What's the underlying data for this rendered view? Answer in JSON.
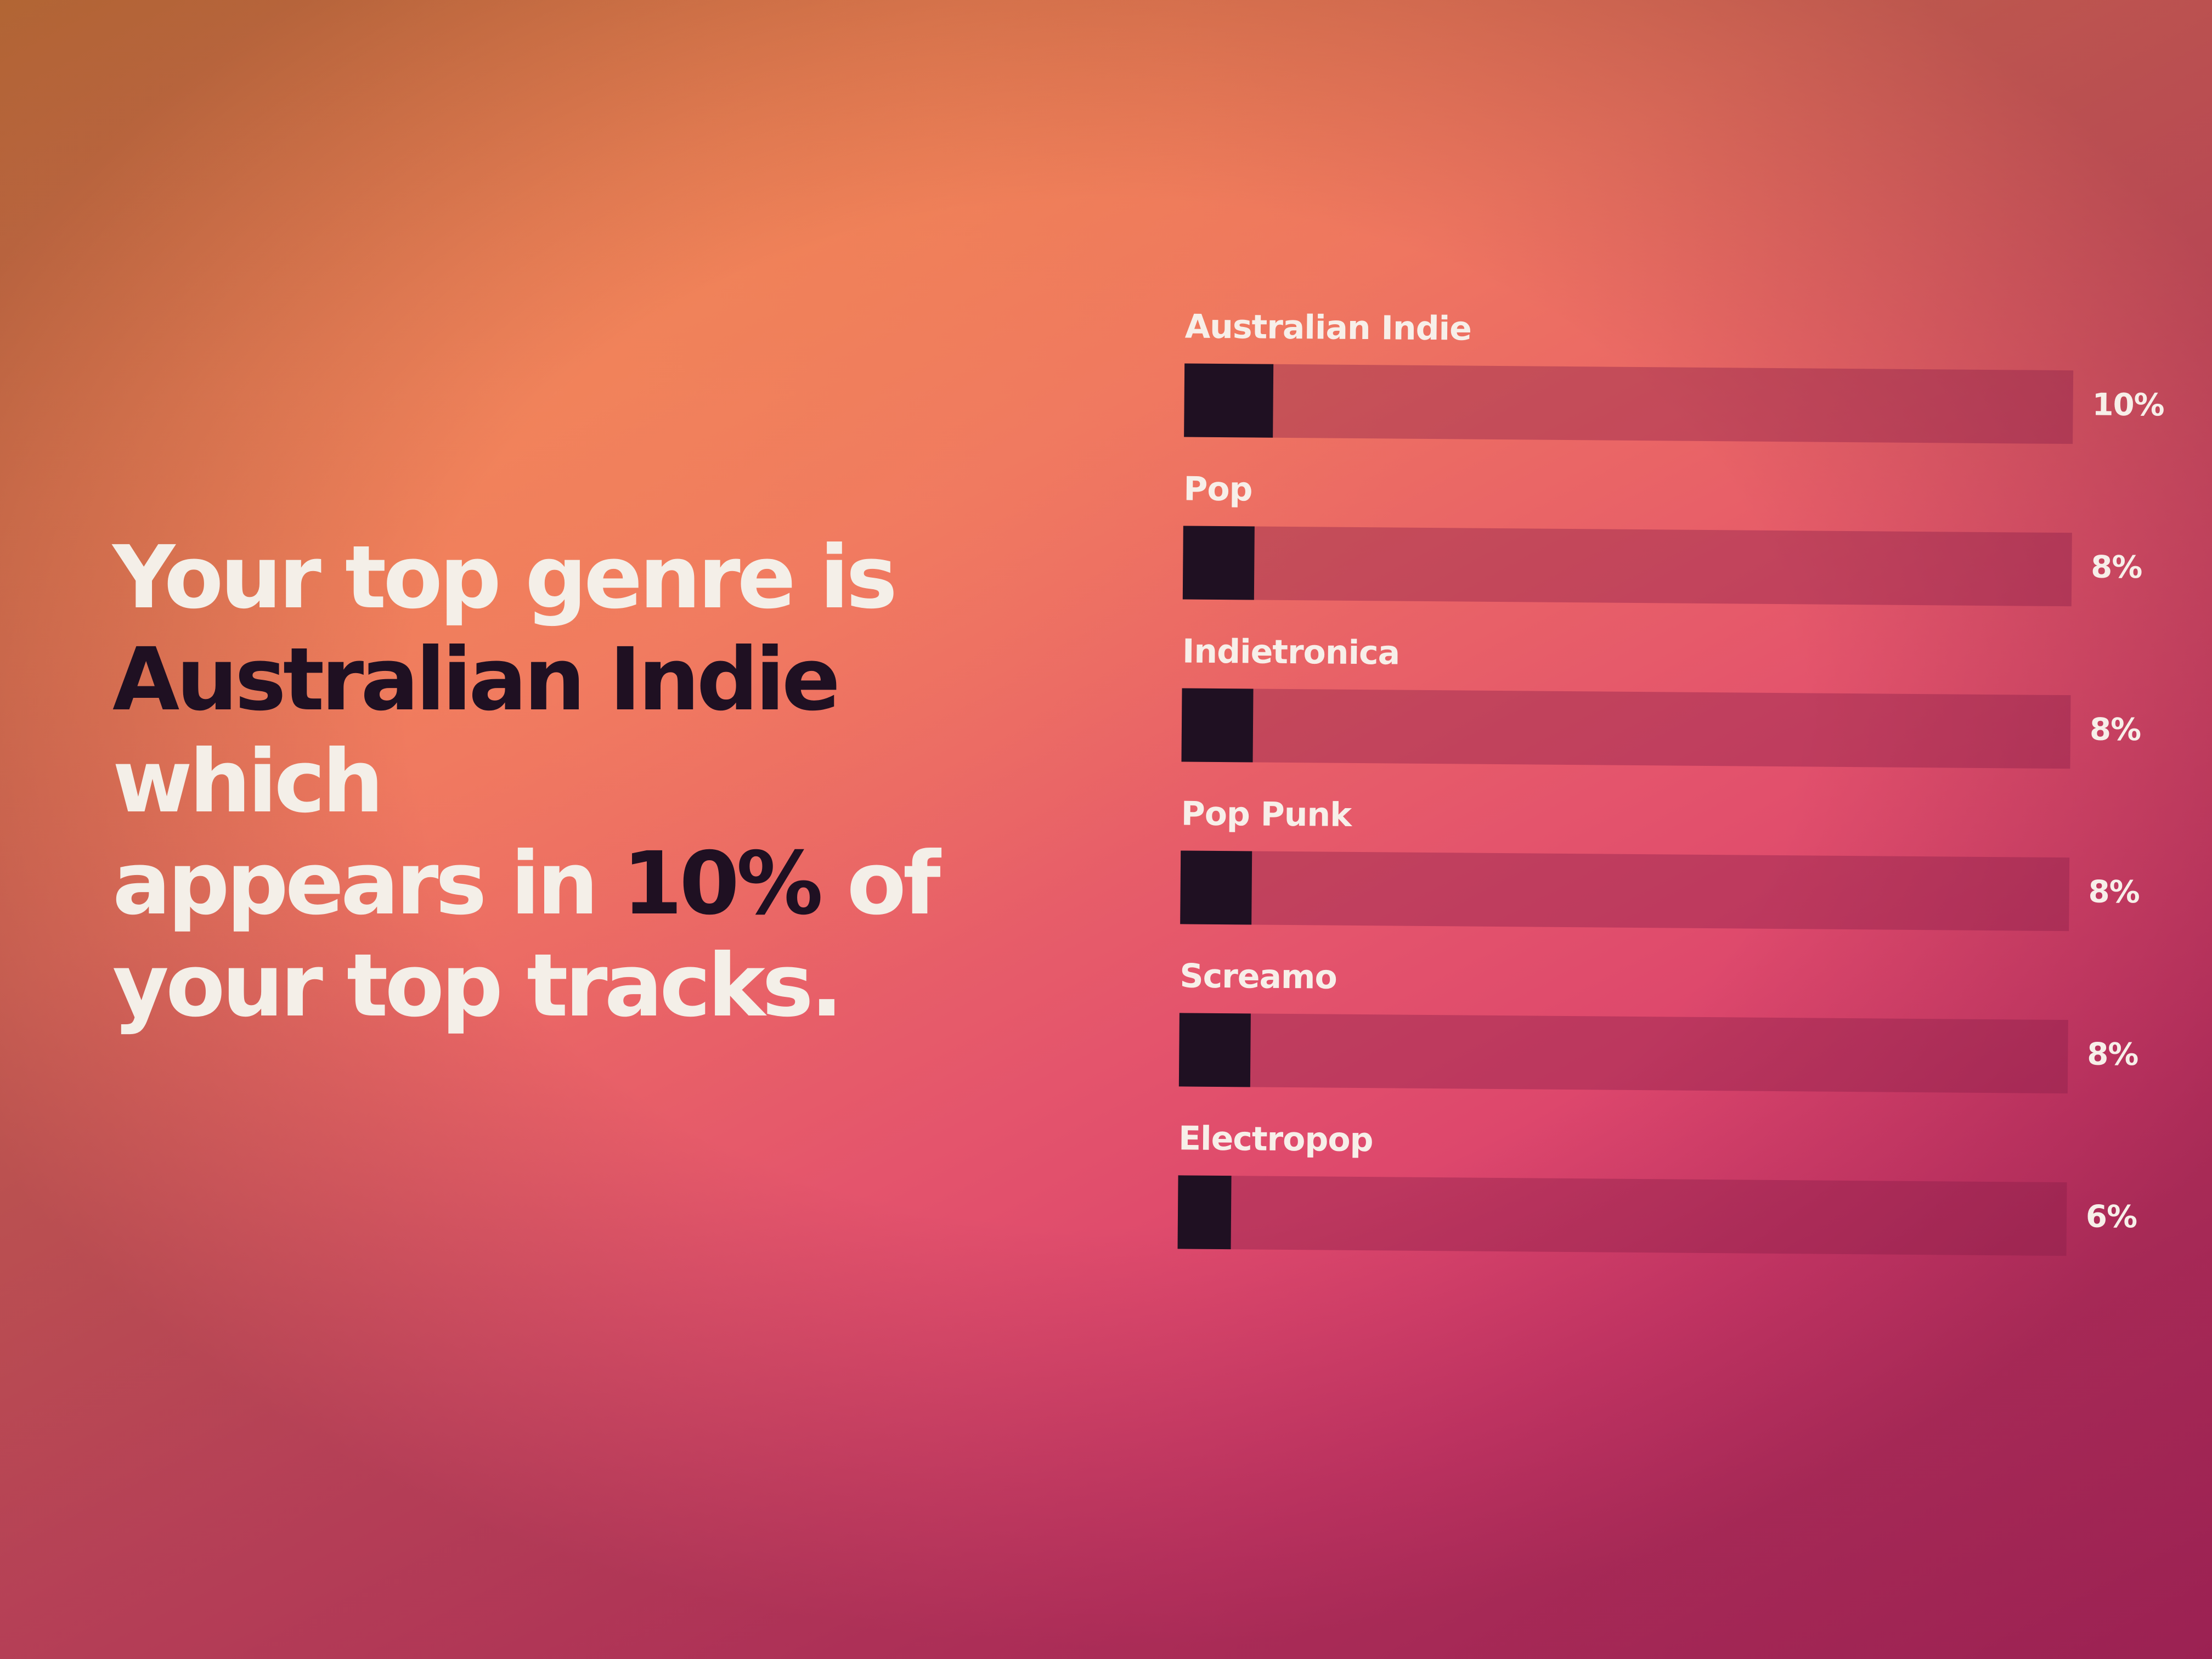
{
  "headline": {
    "line1": "Your top genre is",
    "genre": "Australian Indie",
    "which": " which",
    "appears": "appears in ",
    "percent": "10%",
    "of": " of",
    "line4": "your top tracks."
  },
  "colors": {
    "highlight": "#1f1022",
    "text": "#f4efe8",
    "bar_fill": "#1f1022",
    "gradient_start": "#dc8838",
    "gradient_end": "#c02a67"
  },
  "chart_data": {
    "type": "bar",
    "orientation": "horizontal",
    "categories": [
      "Australian Indie",
      "Pop",
      "Indietronica",
      "Pop Punk",
      "Screamo",
      "Electropop"
    ],
    "values": [
      10,
      8,
      8,
      8,
      8,
      6
    ],
    "value_labels": [
      "10%",
      "8%",
      "8%",
      "8%",
      "8%",
      "6%"
    ],
    "xlim": [
      0,
      100
    ],
    "grid": false
  }
}
